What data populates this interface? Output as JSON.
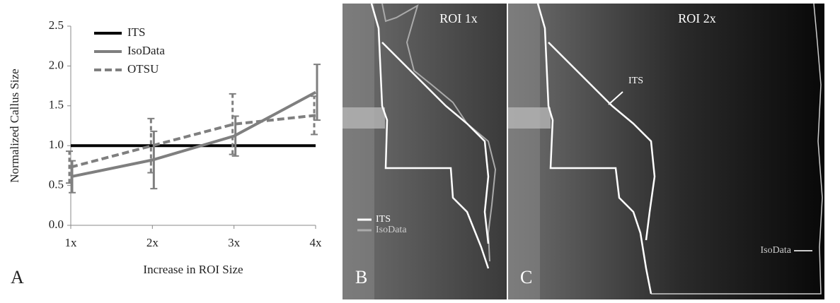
{
  "chart_data": {
    "type": "line",
    "x_label": "Increase in ROI Size",
    "y_label": "Normalized Callus Size",
    "panel_label": "A",
    "categories": [
      "1x",
      "2x",
      "3x",
      "4x"
    ],
    "ylim": [
      0,
      2.5
    ],
    "yticks": [
      {
        "value": 0,
        "label": "0.0"
      },
      0.5,
      {
        "value": 1,
        "label": "1.0"
      },
      1.5,
      {
        "value": 2,
        "label": "2.0"
      },
      2.5
    ],
    "legend": "upper left",
    "series": [
      {
        "name": "ITS",
        "color": "#000000",
        "dash": false,
        "values": [
          1,
          1,
          1,
          1
        ]
      },
      {
        "name": "IsoData",
        "color": "#7f7f7f",
        "dash": false,
        "values": [
          0.61,
          0.82,
          1.12,
          1.67
        ],
        "errors": [
          0.2,
          0.36,
          0.25,
          0.35
        ]
      },
      {
        "name": "OTSU",
        "color": "#7f7f7f",
        "dash": true,
        "values": [
          0.73,
          1.0,
          1.27,
          1.38
        ],
        "errors": [
          0.2,
          0.34,
          0.38,
          0.24
        ]
      }
    ]
  },
  "panels": [
    {
      "label": "B",
      "title": "ROI 1x",
      "legend": [
        "ITS",
        "IsoData"
      ]
    },
    {
      "label": "C",
      "title": "ROI 2x",
      "arrows": [
        "ITS",
        "IsoData"
      ]
    }
  ]
}
